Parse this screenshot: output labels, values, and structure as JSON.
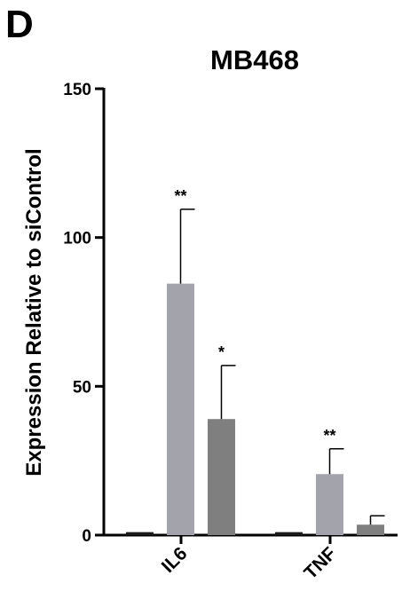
{
  "panel_label": "D",
  "chart_data": {
    "type": "bar",
    "title": "MB468",
    "xlabel": "",
    "ylabel": "Expression Relative to siControl",
    "ylim": [
      0,
      150
    ],
    "yticks": [
      "0",
      "50",
      "100",
      "150"
    ],
    "categories": [
      "IL6",
      "TNF"
    ],
    "grid": false,
    "legend": "none",
    "series": [
      {
        "values": [
          1,
          1
        ],
        "errors": [
          0,
          0
        ],
        "significance": [
          "",
          ""
        ],
        "color": "#1a1a1a"
      },
      {
        "values": [
          84.5,
          20.5
        ],
        "errors": [
          25,
          8.5
        ],
        "significance": [
          "**",
          "**"
        ],
        "color": "#a3a3ab"
      },
      {
        "values": [
          39,
          3.5
        ],
        "errors": [
          18,
          3
        ],
        "significance": [
          "*",
          ""
        ],
        "color": "#7f7f7f"
      }
    ]
  }
}
